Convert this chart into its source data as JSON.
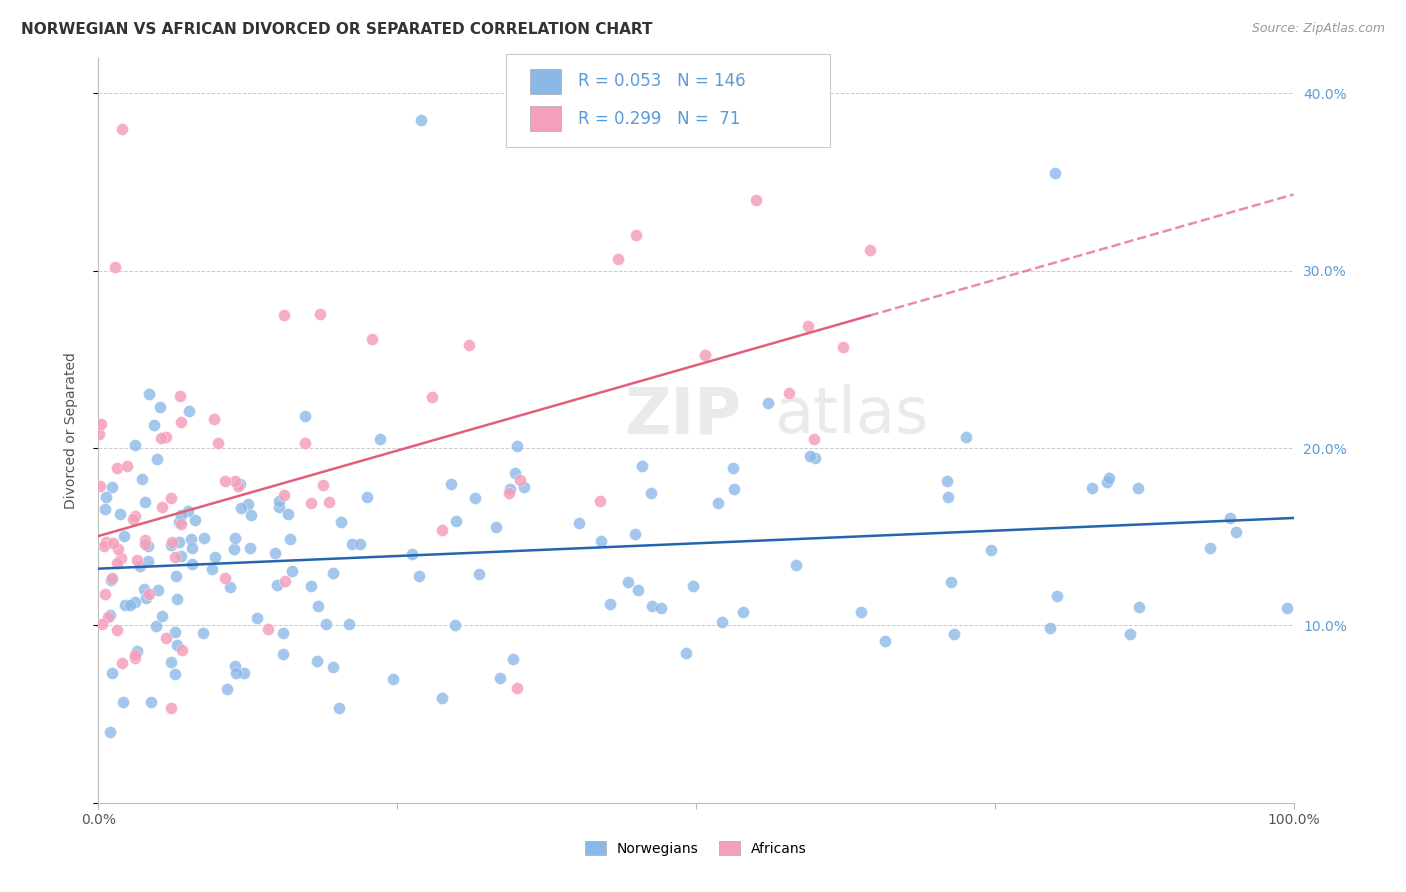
{
  "title": "NORWEGIAN VS AFRICAN DIVORCED OR SEPARATED CORRELATION CHART",
  "source": "Source: ZipAtlas.com",
  "ylabel": "Divorced or Separated",
  "xlim": [
    0,
    1.0
  ],
  "ylim": [
    0,
    0.42
  ],
  "ytick_vals": [
    0.0,
    0.1,
    0.2,
    0.3,
    0.4
  ],
  "ytick_labels": [
    "",
    "10.0%",
    "20.0%",
    "30.0%",
    "40.0%"
  ],
  "xtick_vals": [
    0.0,
    0.25,
    0.5,
    0.75,
    1.0
  ],
  "xtick_labels": [
    "0.0%",
    "",
    "",
    "",
    "100.0%"
  ],
  "norwegian_color": "#8CB8E8",
  "african_color": "#F4A0BB",
  "norwegian_line_color": "#2565AE",
  "african_line_color": "#E0607A",
  "watermark1": "ZIP",
  "watermark2": "atlas",
  "background_color": "#FFFFFF",
  "grid_color": "#CCCCCC",
  "legend_line1": "R = 0.053",
  "legend_n1": "N = 146",
  "legend_line2": "R = 0.299",
  "legend_n2": "N =  71",
  "legend_text_color": "#5B9BD5",
  "right_tick_color": "#5B9BD5",
  "nor_seed": 101,
  "afr_seed": 202
}
